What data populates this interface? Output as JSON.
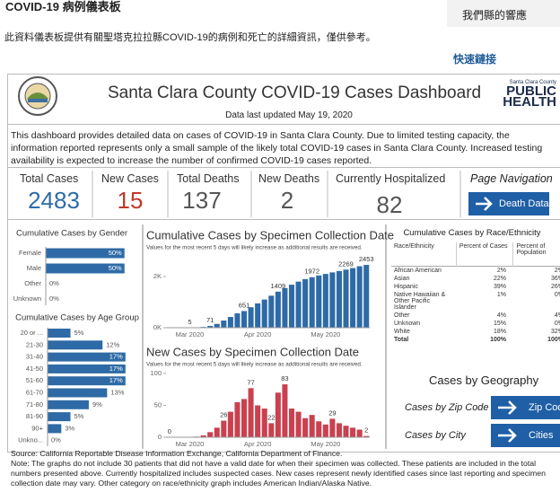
{
  "header": {
    "title": "COVID-19 病例儀表板",
    "side_link": "我們縣的響應",
    "intro": "此資料儀表板提供有關聖塔克拉拉縣COVID-19的病例和死亡的詳細資訊，僅供參考。",
    "quick_links": "快速鏈接"
  },
  "dashboard": {
    "title": "Santa Clara County COVID-19 Cases Dashboard",
    "updated": "Data last updated May 19, 2020",
    "logo": {
      "county": "Santa Clara County",
      "line1": "PUBLIC",
      "line2": "HEALTH"
    },
    "description": "This dashboard provides detailed data on cases of COVID-19 in Santa Clara County. Due to limited testing capacity, the information reported represents only a small sample of the likely total COVID-19 cases in Santa Clara County. Increased testing availability is expected to increase the number of confirmed COVID-19 cases reported.",
    "kpis": [
      {
        "label": "Total Cases",
        "value": 2483,
        "color": "#2e6ba6"
      },
      {
        "label": "New Cases",
        "value": 15,
        "color": "#c0392b"
      },
      {
        "label": "Total Deaths",
        "value": 137,
        "color": "#555555"
      },
      {
        "label": "New Deaths",
        "value": 2,
        "color": "#555555"
      },
      {
        "label": "Currently Hospitalized",
        "value": 82,
        "color": "#555555"
      }
    ],
    "navigation": {
      "title": "Page Navigation",
      "button": "Death Data"
    },
    "gender_chart": {
      "type": "bar",
      "title": "Cumulative Cases by Gender",
      "categories": [
        "Female",
        "Male",
        "Other",
        "Unknown"
      ],
      "values": [
        50,
        50,
        0,
        0
      ],
      "value_labels": [
        "50%",
        "50%",
        "0%",
        "0%"
      ],
      "xlim": [
        0,
        57
      ],
      "color": "#2e6ba6"
    },
    "age_chart": {
      "type": "bar",
      "title": "Cumulative Cases by Age Group",
      "categories": [
        "20 or ...",
        "21-30",
        "31-40",
        "41-50",
        "51-60",
        "61-70",
        "71-80",
        "81-90",
        "90+",
        "Unkno..."
      ],
      "values": [
        5,
        12,
        17,
        17,
        17,
        13,
        9,
        5,
        3,
        0
      ],
      "value_labels": [
        "5%",
        "12%",
        "17%",
        "17%",
        "17%",
        "13%",
        "9%",
        "5%",
        "3%",
        "0%"
      ],
      "xlim": [
        0,
        19
      ],
      "color": "#2e6ba6"
    },
    "cumulative_chart": {
      "type": "bar",
      "title": "Cumulative Cases by Specimen Collection Date",
      "subtitle": "Values for the most recent 5 days will likely increase as additional results are received.",
      "categories": [
        null,
        null,
        null,
        "Mar 2020",
        null,
        null,
        null,
        null,
        null,
        null,
        null,
        null,
        null,
        "Apr 2020",
        null,
        null,
        null,
        null,
        null,
        null,
        null,
        null,
        null,
        "May 2020",
        null,
        null,
        null,
        null,
        null,
        null
      ],
      "values": [
        0,
        1,
        3,
        5,
        10,
        30,
        71,
        150,
        280,
        420,
        560,
        651,
        800,
        950,
        1100,
        1250,
        1409,
        1550,
        1680,
        1800,
        1900,
        1972,
        2040,
        2100,
        2160,
        2215,
        2269,
        2330,
        2400,
        2453
      ],
      "data_labels": [
        null,
        null,
        null,
        5,
        null,
        null,
        71,
        null,
        null,
        null,
        null,
        651,
        null,
        null,
        null,
        null,
        1409,
        null,
        null,
        null,
        null,
        1972,
        null,
        null,
        null,
        null,
        2269,
        null,
        null,
        2453
      ],
      "ylim": [
        0,
        2700
      ],
      "yticks": [
        {
          "value": 0,
          "label": "0K"
        },
        {
          "value": 2000,
          "label": "2K"
        }
      ],
      "color": "#2e6ba6"
    },
    "new_chart": {
      "type": "bar",
      "title": "New Cases by Specimen Collection Date",
      "subtitle": "Values for the most recent 5 days will likely increase as additional results are received.",
      "categories": [
        null,
        null,
        null,
        "Mar 2020",
        null,
        null,
        null,
        null,
        null,
        null,
        null,
        null,
        null,
        "Apr 2020",
        null,
        null,
        null,
        null,
        null,
        null,
        null,
        null,
        null,
        "May 2020",
        null,
        null,
        null,
        null,
        null,
        null
      ],
      "values": [
        0,
        0,
        0,
        0,
        1,
        3,
        8,
        15,
        26,
        40,
        55,
        60,
        77,
        50,
        45,
        22,
        70,
        83,
        45,
        40,
        30,
        35,
        25,
        20,
        29,
        22,
        18,
        15,
        12,
        2
      ],
      "data_labels": [
        0,
        null,
        null,
        null,
        null,
        null,
        null,
        null,
        26,
        null,
        null,
        null,
        77,
        null,
        null,
        22,
        null,
        83,
        null,
        null,
        null,
        null,
        null,
        null,
        29,
        null,
        null,
        null,
        null,
        2
      ],
      "ylim": [
        0,
        100
      ],
      "yticks": [
        0,
        50,
        100
      ],
      "color": "#c9414f"
    },
    "race_table": {
      "title": "Cumulative Cases by Race/Ethnicity",
      "columns": [
        "Race/Ethnicity",
        "Percent of Cases",
        "Percent of Population"
      ],
      "rows": [
        [
          "African American",
          "2%",
          "2%"
        ],
        [
          "Asian",
          "22%",
          "36%"
        ],
        [
          "Hispanic",
          "39%",
          "26%"
        ],
        [
          "Native Hawaiian & Other Pacific Islander",
          "1%",
          "0%"
        ],
        [
          "Other",
          "4%",
          "4%"
        ],
        [
          "Unknown",
          "15%",
          "0%"
        ],
        [
          "White",
          "18%",
          "32%"
        ],
        [
          "Total",
          "100%",
          "100%"
        ]
      ]
    },
    "geography": {
      "title": "Cases by Geography",
      "rows": [
        {
          "label": "Cases by Zip Code",
          "button": "Zip Code"
        },
        {
          "label": "Cases by City",
          "button": "Cities"
        }
      ]
    },
    "source": "Source: California Reportable Disease Information Exchange, California Department of Finance.",
    "note": "Note: The graphs do not include 30 patients that did not have a valid date for when their specimen was collected. These patients are included in the total numbers presented above. Currently hospitalized includes suspected cases. New cases represent newly identified cases since last reporting and specimen collection date may vary. Other category on race/ethnicity graph includes American Indian/Alaska Native."
  }
}
